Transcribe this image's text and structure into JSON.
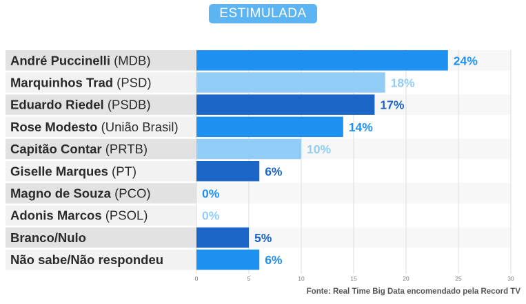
{
  "header": {
    "badge": "ESTIMULADA"
  },
  "source": "Fonte: Real Time Big Data encomendado pela Record TV",
  "colors": {
    "dark_blue": "#1a65c6",
    "mid_blue": "#1e90f0",
    "light_blue": "#92cdf7",
    "label_bg_dark": "#e2e2e2",
    "label_bg_light": "#f2f2f2",
    "grid": "#dddddd"
  },
  "chart_data": {
    "type": "bar",
    "orientation": "horizontal",
    "title": "",
    "xlabel": "",
    "ylabel": "",
    "xlim": [
      0,
      30
    ],
    "x_ticks": [
      0,
      5,
      10,
      15,
      20,
      25,
      30
    ],
    "grid": true,
    "categories": [
      {
        "name": "André Puccinelli",
        "party": "(MDB)"
      },
      {
        "name": "Marquinhos Trad",
        "party": "(PSD)"
      },
      {
        "name": "Eduardo Riedel",
        "party": "(PSDB)"
      },
      {
        "name": "Rose Modesto",
        "party": "(União Brasil)"
      },
      {
        "name": "Capitão Contar",
        "party": "(PRTB)"
      },
      {
        "name": "Giselle Marques",
        "party": "(PT)"
      },
      {
        "name": "Magno de Souza",
        "party": "(PCO)"
      },
      {
        "name": "Adonis Marcos",
        "party": "(PSOL)"
      },
      {
        "name": "Branco/Nulo",
        "party": ""
      },
      {
        "name": "Não sabe/Não respondeu",
        "party": ""
      }
    ],
    "values": [
      24,
      18,
      17,
      14,
      10,
      6,
      0,
      0,
      5,
      6
    ],
    "value_labels": [
      "24%",
      "18%",
      "17%",
      "14%",
      "10%",
      "6%",
      "0%",
      "0%",
      "5%",
      "6%"
    ],
    "bar_colors": [
      "mid_blue",
      "light_blue",
      "dark_blue",
      "mid_blue",
      "light_blue",
      "dark_blue",
      "mid_blue",
      "light_blue",
      "dark_blue",
      "mid_blue"
    ]
  }
}
